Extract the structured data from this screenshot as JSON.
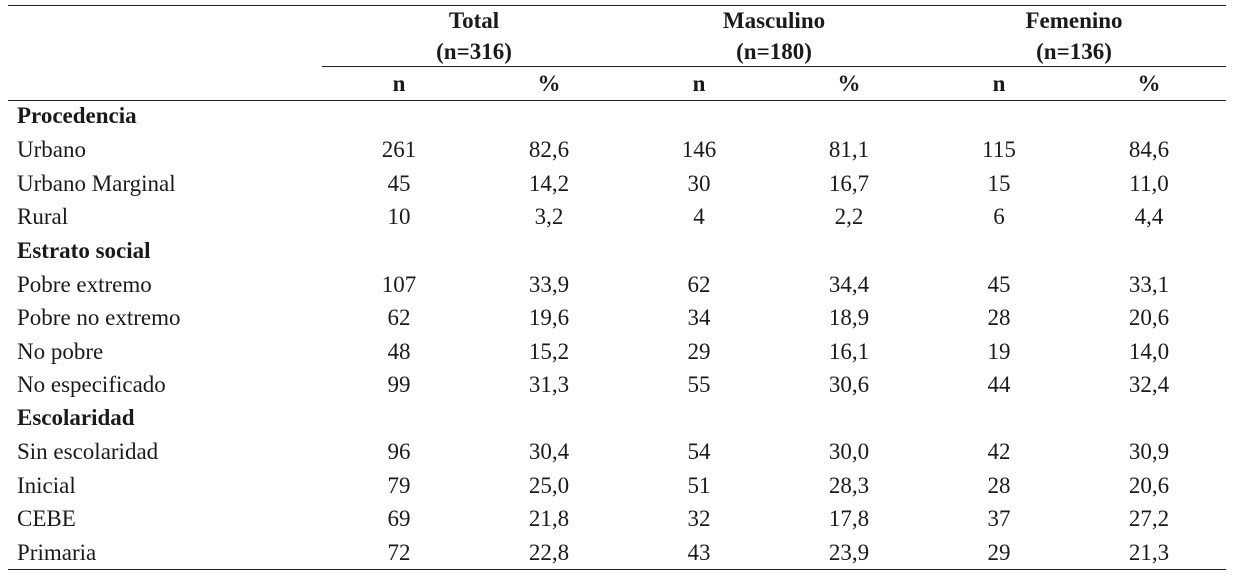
{
  "groups": [
    {
      "title": "Total",
      "count": "(n=316)"
    },
    {
      "title": "Masculino",
      "count": "(n=180)"
    },
    {
      "title": "Femenino",
      "count": "(n=136)"
    }
  ],
  "subheaders": [
    "n",
    "%",
    "n",
    "%",
    "n",
    "%"
  ],
  "sections": [
    {
      "title": "Procedencia",
      "rows": [
        {
          "label": "Urbano",
          "values": [
            "261",
            "82,6",
            "146",
            "81,1",
            "115",
            "84,6"
          ]
        },
        {
          "label": "Urbano Marginal",
          "values": [
            "45",
            "14,2",
            "30",
            "16,7",
            "15",
            "11,0"
          ]
        },
        {
          "label": "Rural",
          "values": [
            "10",
            "3,2",
            "4",
            "2,2",
            "6",
            "4,4"
          ]
        }
      ]
    },
    {
      "title": "Estrato social",
      "rows": [
        {
          "label": "Pobre extremo",
          "values": [
            "107",
            "33,9",
            "62",
            "34,4",
            "45",
            "33,1"
          ]
        },
        {
          "label": "Pobre no extremo",
          "values": [
            "62",
            "19,6",
            "34",
            "18,9",
            "28",
            "20,6"
          ]
        },
        {
          "label": "No pobre",
          "values": [
            "48",
            "15,2",
            "29",
            "16,1",
            "19",
            "14,0"
          ]
        },
        {
          "label": "No especificado",
          "values": [
            "99",
            "31,3",
            "55",
            "30,6",
            "44",
            "32,4"
          ]
        }
      ]
    },
    {
      "title": "Escolaridad",
      "rows": [
        {
          "label": "Sin escolaridad",
          "values": [
            "96",
            "30,4",
            "54",
            "30,0",
            "42",
            "30,9"
          ]
        },
        {
          "label": "Inicial",
          "values": [
            "79",
            "25,0",
            "51",
            "28,3",
            "28",
            "20,6"
          ]
        },
        {
          "label": "CEBE",
          "values": [
            "69",
            "21,8",
            "32",
            "17,8",
            "37",
            "27,2"
          ]
        },
        {
          "label": "Primaria",
          "values": [
            "72",
            "22,8",
            "43",
            "23,9",
            "29",
            "21,3"
          ]
        }
      ]
    }
  ]
}
